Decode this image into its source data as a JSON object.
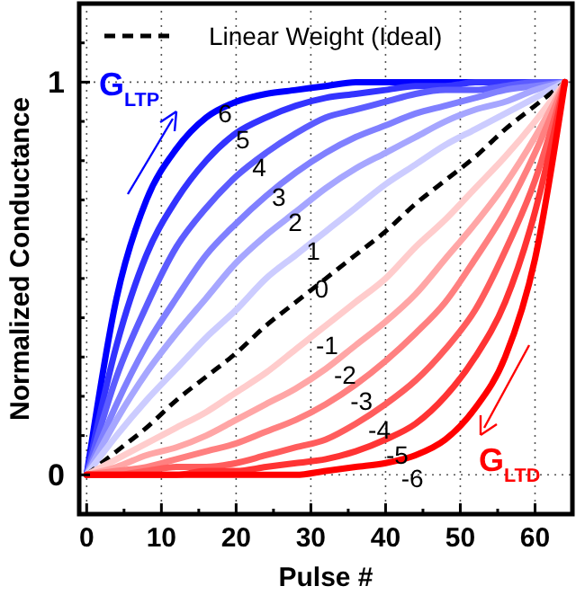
{
  "chart_data": {
    "type": "line",
    "xlabel": "Pulse #",
    "ylabel": "Normalized Conductance",
    "x": [
      0,
      4,
      8,
      12,
      16,
      20,
      24,
      28,
      32,
      36,
      40,
      44,
      48,
      52,
      56,
      60,
      64
    ],
    "xlim": [
      -1,
      65
    ],
    "ylim": [
      -0.1,
      1.2
    ],
    "xticks": [
      0,
      {
        "value": 5,
        "label": null
      },
      10,
      {
        "value": 15,
        "label": null
      },
      20,
      {
        "value": 25,
        "label": null
      },
      30,
      {
        "value": 35,
        "label": null
      },
      40,
      {
        "value": 45,
        "label": null
      },
      50,
      {
        "value": 55,
        "label": null
      },
      60
    ],
    "yticks": [
      {
        "value": -0.1,
        "label": null
      },
      0,
      {
        "value": 0.1,
        "label": null
      },
      {
        "value": 0.2,
        "label": null
      },
      {
        "value": 0.3,
        "label": null
      },
      {
        "value": 0.4,
        "label": null
      },
      {
        "value": 0.5,
        "label": null
      },
      {
        "value": 0.6,
        "label": null
      },
      {
        "value": 0.7,
        "label": null
      },
      {
        "value": 0.8,
        "label": null
      },
      {
        "value": 0.9,
        "label": null
      },
      1,
      {
        "value": 1.1,
        "label": null
      }
    ],
    "grid": true,
    "legend": "top",
    "marker": "none",
    "series": [
      {
        "name": "6",
        "color": "#0000ff",
        "values": [
          0,
          0.45,
          0.7,
          0.83,
          0.91,
          0.95,
          0.97,
          0.98,
          0.99,
          1,
          1,
          1,
          1,
          1,
          1,
          1,
          1
        ]
      },
      {
        "name": "5",
        "color": "#3333ff",
        "values": [
          0,
          0.33,
          0.56,
          0.7,
          0.8,
          0.87,
          0.91,
          0.94,
          0.96,
          0.97,
          0.98,
          0.99,
          0.99,
          1,
          1,
          1,
          1
        ]
      },
      {
        "name": "4",
        "color": "#5c5cff",
        "values": [
          0,
          0.25,
          0.43,
          0.58,
          0.68,
          0.76,
          0.82,
          0.87,
          0.91,
          0.93,
          0.95,
          0.97,
          0.98,
          0.98,
          0.99,
          1,
          1
        ]
      },
      {
        "name": "3",
        "color": "#8080ff",
        "values": [
          0,
          0.18,
          0.33,
          0.45,
          0.56,
          0.64,
          0.71,
          0.77,
          0.82,
          0.86,
          0.89,
          0.92,
          0.94,
          0.96,
          0.98,
          0.99,
          1
        ]
      },
      {
        "name": "2",
        "color": "#a6a6ff",
        "values": [
          0,
          0.14,
          0.26,
          0.36,
          0.45,
          0.54,
          0.61,
          0.67,
          0.73,
          0.78,
          0.82,
          0.86,
          0.9,
          0.93,
          0.95,
          0.98,
          1
        ]
      },
      {
        "name": "1",
        "color": "#ccccff",
        "values": [
          0,
          0.1,
          0.19,
          0.27,
          0.35,
          0.42,
          0.5,
          0.56,
          0.62,
          0.68,
          0.74,
          0.79,
          0.84,
          0.88,
          0.92,
          0.96,
          1
        ]
      },
      {
        "name": "Linear Weight (Ideal)",
        "color": "#000000",
        "line_style": "dashed",
        "values": [
          0,
          0.06,
          0.12,
          0.19,
          0.25,
          0.31,
          0.38,
          0.44,
          0.5,
          0.56,
          0.62,
          0.69,
          0.75,
          0.81,
          0.88,
          0.94,
          1
        ]
      },
      {
        "name": "-1",
        "color": "#ffcccc",
        "values": [
          0,
          0.04,
          0.08,
          0.12,
          0.16,
          0.21,
          0.26,
          0.32,
          0.38,
          0.44,
          0.5,
          0.58,
          0.65,
          0.73,
          0.81,
          0.9,
          1
        ]
      },
      {
        "name": "-2",
        "color": "#ffa6a6",
        "values": [
          0,
          0.02,
          0.05,
          0.07,
          0.1,
          0.14,
          0.18,
          0.22,
          0.27,
          0.33,
          0.39,
          0.46,
          0.55,
          0.64,
          0.74,
          0.86,
          1
        ]
      },
      {
        "name": "-3",
        "color": "#ff8080",
        "values": [
          0,
          0.01,
          0.02,
          0.04,
          0.06,
          0.08,
          0.11,
          0.14,
          0.18,
          0.23,
          0.29,
          0.36,
          0.44,
          0.55,
          0.67,
          0.82,
          1
        ]
      },
      {
        "name": "-4",
        "color": "#ff5c5c",
        "values": [
          0,
          0,
          0.01,
          0.02,
          0.02,
          0.03,
          0.05,
          0.07,
          0.09,
          0.13,
          0.18,
          0.24,
          0.32,
          0.42,
          0.57,
          0.75,
          1
        ]
      },
      {
        "name": "-5",
        "color": "#ff3333",
        "values": [
          0,
          0,
          0,
          0,
          0.01,
          0.01,
          0.02,
          0.03,
          0.04,
          0.06,
          0.09,
          0.13,
          0.2,
          0.3,
          0.44,
          0.67,
          1
        ]
      },
      {
        "name": "-6",
        "color": "#ff0000",
        "values": [
          0,
          0,
          0,
          0,
          0,
          0,
          0,
          0,
          0.01,
          0.02,
          0.03,
          0.05,
          0.09,
          0.17,
          0.3,
          0.55,
          1
        ]
      }
    ],
    "annotations": [
      "G$_{LTP}$",
      "G$_{LTD}$",
      {
        "text": "0",
        "x": 30,
        "y": 0.47
      }
    ]
  }
}
